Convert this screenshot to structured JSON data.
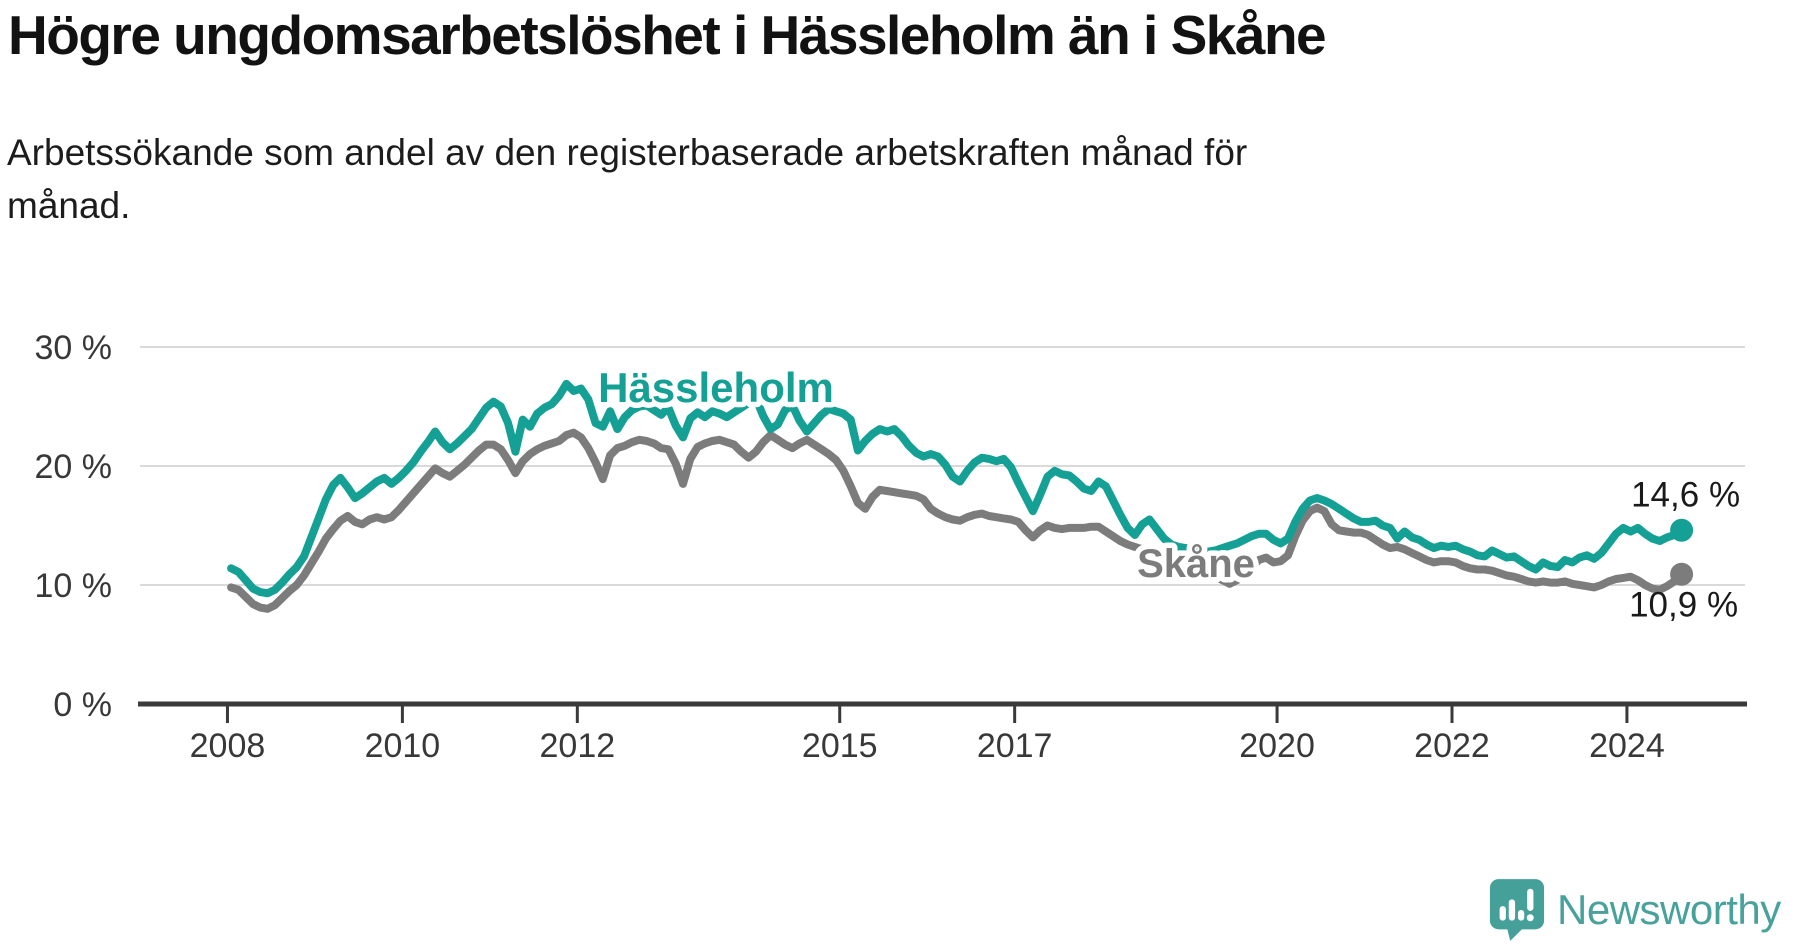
{
  "chart_data": {
    "type": "line",
    "title": "Högre ungdomsarbetslöshet i Hässleholm än i Skåne",
    "subtitle_lines": [
      "Arbetssökande som andel av den registerbaserade arbetskraften månad för",
      "månad."
    ],
    "unit": "%",
    "frequency": "monthly",
    "start": "2008-01",
    "end": "2024-08",
    "x_domain": [
      2007.0,
      2025.35
    ],
    "ylim": [
      0,
      30
    ],
    "grid": "horizontal",
    "legend": "inline-labels",
    "y_ticks": [
      {
        "value": 0,
        "label": "0 %"
      },
      {
        "value": 10,
        "label": "10 %"
      },
      {
        "value": 20,
        "label": "20 %"
      },
      {
        "value": 30,
        "label": "30 %"
      }
    ],
    "x_ticks": [
      {
        "value": 2008,
        "label": "2008"
      },
      {
        "value": 2010,
        "label": "2010"
      },
      {
        "value": 2012,
        "label": "2012"
      },
      {
        "value": 2015,
        "label": "2015"
      },
      {
        "value": 2017,
        "label": "2017"
      },
      {
        "value": 2020,
        "label": "2020"
      },
      {
        "value": 2022,
        "label": "2022"
      },
      {
        "value": 2024,
        "label": "2024"
      }
    ],
    "series": [
      {
        "name": "Hässleholm",
        "color": "#14a094",
        "end_label": "14,6 %",
        "last_value": 14.6,
        "values": [
          11.4,
          11.1,
          10.4,
          9.7,
          9.4,
          9.3,
          9.6,
          10.2,
          10.9,
          11.5,
          12.4,
          14.0,
          15.6,
          17.2,
          18.4,
          19.0,
          18.2,
          17.3,
          17.7,
          18.2,
          18.7,
          19.0,
          18.5,
          19.0,
          19.6,
          20.3,
          21.2,
          22.0,
          22.9,
          22.0,
          21.4,
          21.9,
          22.5,
          23.1,
          24.0,
          24.9,
          25.4,
          25.0,
          23.6,
          21.2,
          23.9,
          23.3,
          24.4,
          24.9,
          25.2,
          25.9,
          26.9,
          26.3,
          26.5,
          25.6,
          23.6,
          23.3,
          24.6,
          23.1,
          24.1,
          24.7,
          25.0,
          25.1,
          24.7,
          24.3,
          24.9,
          23.4,
          22.4,
          24.0,
          24.5,
          24.1,
          24.6,
          24.4,
          24.1,
          24.5,
          24.9,
          25.3,
          25.7,
          24.2,
          23.1,
          23.5,
          24.7,
          25.1,
          23.8,
          22.9,
          23.6,
          24.3,
          24.8,
          24.6,
          24.4,
          23.9,
          21.3,
          22.1,
          22.7,
          23.1,
          22.9,
          23.1,
          22.5,
          21.7,
          21.1,
          20.8,
          21.0,
          20.8,
          20.1,
          19.1,
          18.7,
          19.6,
          20.3,
          20.7,
          20.6,
          20.4,
          20.6,
          19.9,
          18.6,
          17.4,
          16.2,
          17.6,
          19.1,
          19.6,
          19.3,
          19.2,
          18.7,
          18.1,
          17.9,
          18.7,
          18.3,
          17.1,
          15.9,
          14.8,
          14.2,
          15.1,
          15.5,
          14.7,
          13.9,
          13.4,
          13.2,
          13.1,
          13.0,
          12.9,
          12.8,
          12.9,
          13.1,
          13.3,
          13.5,
          13.8,
          14.1,
          14.3,
          14.3,
          13.8,
          13.5,
          13.9,
          15.3,
          16.4,
          17.1,
          17.3,
          17.1,
          16.8,
          16.4,
          16.0,
          15.6,
          15.3,
          15.3,
          15.4,
          15.0,
          14.8,
          13.9,
          14.5,
          14.0,
          13.8,
          13.4,
          13.1,
          13.3,
          13.2,
          13.3,
          13.0,
          12.8,
          12.5,
          12.4,
          12.9,
          12.6,
          12.3,
          12.4,
          12.0,
          11.6,
          11.3,
          11.9,
          11.6,
          11.5,
          12.1,
          11.9,
          12.3,
          12.5,
          12.2,
          12.7,
          13.5,
          14.3,
          14.8,
          14.5,
          14.8,
          14.3,
          13.9,
          13.7,
          14.0,
          14.2,
          14.6
        ]
      },
      {
        "name": "Skåne",
        "color": "#7c7c7c",
        "end_label": "10,9 %",
        "last_value": 10.9,
        "values": [
          9.8,
          9.6,
          9.0,
          8.4,
          8.1,
          8.0,
          8.3,
          8.9,
          9.5,
          10.0,
          10.8,
          11.8,
          12.8,
          13.9,
          14.7,
          15.4,
          15.8,
          15.3,
          15.1,
          15.5,
          15.7,
          15.5,
          15.7,
          16.3,
          17.0,
          17.7,
          18.4,
          19.1,
          19.8,
          19.4,
          19.1,
          19.6,
          20.1,
          20.7,
          21.3,
          21.8,
          21.8,
          21.4,
          20.5,
          19.4,
          20.4,
          21.0,
          21.4,
          21.7,
          21.9,
          22.1,
          22.6,
          22.8,
          22.4,
          21.5,
          20.3,
          18.9,
          20.9,
          21.5,
          21.7,
          22.0,
          22.2,
          22.1,
          21.9,
          21.5,
          21.4,
          20.2,
          18.5,
          20.6,
          21.6,
          21.9,
          22.1,
          22.2,
          22.0,
          21.8,
          21.2,
          20.7,
          21.2,
          22.0,
          22.6,
          22.2,
          21.8,
          21.5,
          21.9,
          22.2,
          21.8,
          21.4,
          21.0,
          20.5,
          19.6,
          18.3,
          16.9,
          16.4,
          17.4,
          18.0,
          17.9,
          17.8,
          17.7,
          17.6,
          17.5,
          17.2,
          16.4,
          16.0,
          15.7,
          15.5,
          15.4,
          15.7,
          15.9,
          16.0,
          15.8,
          15.7,
          15.6,
          15.5,
          15.3,
          14.6,
          14.0,
          14.6,
          15.0,
          14.8,
          14.7,
          14.8,
          14.8,
          14.8,
          14.9,
          14.9,
          14.5,
          14.1,
          13.7,
          13.4,
          13.2,
          13.0,
          12.7,
          12.4,
          12.2,
          12.1,
          11.9,
          11.7,
          11.6,
          11.3,
          11.0,
          10.7,
          10.4,
          10.1,
          10.4,
          11.0,
          11.5,
          12.1,
          12.3,
          11.9,
          12.0,
          12.5,
          14.1,
          15.4,
          16.2,
          16.5,
          16.2,
          15.1,
          14.6,
          14.5,
          14.4,
          14.4,
          14.2,
          13.8,
          13.4,
          13.1,
          13.2,
          13.0,
          12.7,
          12.4,
          12.1,
          11.9,
          12.0,
          12.0,
          11.9,
          11.6,
          11.4,
          11.3,
          11.3,
          11.2,
          11.0,
          10.8,
          10.7,
          10.5,
          10.3,
          10.2,
          10.3,
          10.2,
          10.2,
          10.3,
          10.1,
          10.0,
          9.9,
          9.8,
          10.0,
          10.3,
          10.5,
          10.6,
          10.7,
          10.4,
          10.0,
          9.7,
          9.6,
          9.9,
          10.3,
          10.9
        ]
      }
    ],
    "colors": {
      "accent_teal": "#14a094",
      "line_gray": "#7c7c7c",
      "grid": "#dadada",
      "axis": "#3a3a3a",
      "text": "#1a1a1a"
    }
  },
  "footer": {
    "brand": "Newsworthy"
  },
  "icons": {
    "logo_icon": "newsworthy-speech-bubble-bar-chart-icon"
  }
}
